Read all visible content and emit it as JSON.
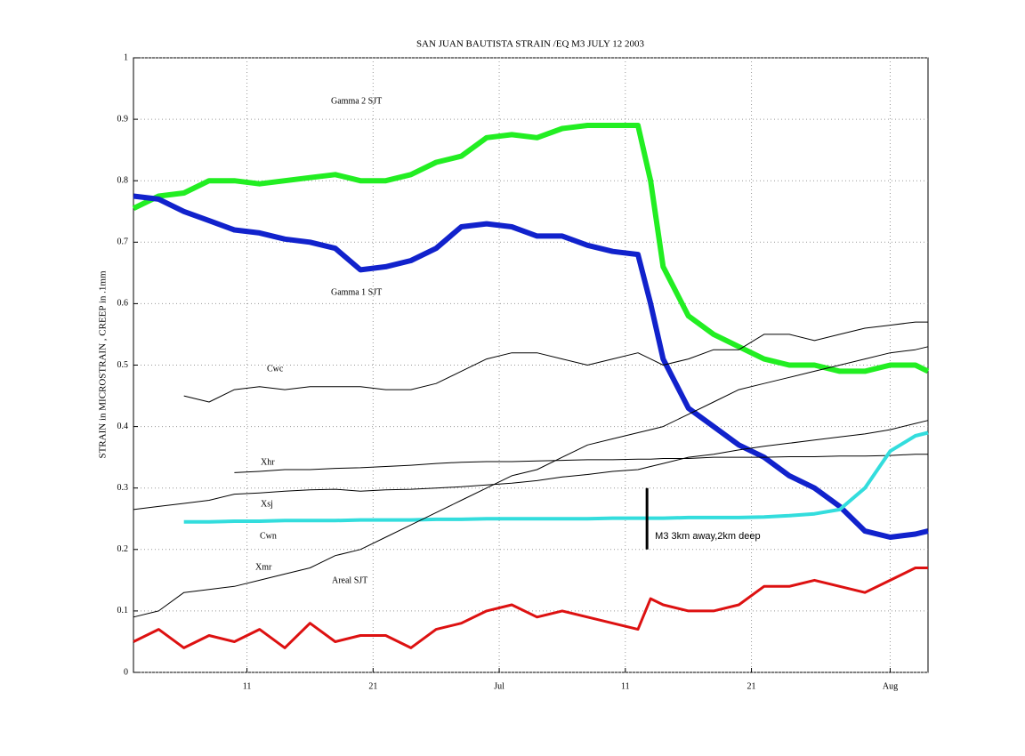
{
  "chart_data": {
    "type": "line",
    "title": "SAN JUAN BAUTISTA STRAIN /EQ M3 JULY 12 2003",
    "y_label": "STRAIN in MICROSTRAIN , CREEP in .1mm",
    "x": [
      "2003-06-02",
      "2003-06-04",
      "2003-06-06",
      "2003-06-08",
      "2003-06-10",
      "2003-06-12",
      "2003-06-14",
      "2003-06-16",
      "2003-06-18",
      "2003-06-20",
      "2003-06-22",
      "2003-06-24",
      "2003-06-26",
      "2003-06-28",
      "2003-06-30",
      "2003-07-02",
      "2003-07-04",
      "2003-07-06",
      "2003-07-08",
      "2003-07-10",
      "2003-07-12",
      "2003-07-13",
      "2003-07-14",
      "2003-07-16",
      "2003-07-18",
      "2003-07-20",
      "2003-07-22",
      "2003-07-24",
      "2003-07-26",
      "2003-07-28",
      "2003-07-30",
      "2003-08-01",
      "2003-08-03",
      "2003-08-04"
    ],
    "xlim": [
      "2003-06-02",
      "2003-08-04"
    ],
    "xticks": [
      {
        "value": "2003-06-11",
        "label": "11"
      },
      {
        "value": "2003-06-21",
        "label": "21"
      },
      {
        "value": "2003-07-01",
        "label": "Jul"
      },
      {
        "value": "2003-07-11",
        "label": "11"
      },
      {
        "value": "2003-07-21",
        "label": "21"
      },
      {
        "value": "2003-08-01",
        "label": "Aug"
      }
    ],
    "ylim": [
      0,
      1
    ],
    "yticks": [
      0,
      0.1,
      0.2,
      0.3,
      0.4,
      0.5,
      0.6,
      0.7,
      0.8,
      0.9,
      1
    ],
    "grid": true,
    "series": [
      {
        "name": "Gamma 2 SJT",
        "color": "#22ee22",
        "width": 6,
        "values": [
          0.755,
          0.775,
          0.78,
          0.8,
          0.8,
          0.795,
          0.8,
          0.805,
          0.81,
          0.8,
          0.8,
          0.81,
          0.83,
          0.84,
          0.87,
          0.875,
          0.87,
          0.885,
          0.89,
          0.89,
          0.89,
          0.8,
          0.66,
          0.58,
          0.55,
          0.53,
          0.51,
          0.5,
          0.5,
          0.49,
          0.49,
          0.5,
          0.5,
          0.49
        ]
      },
      {
        "name": "Gamma 1 SJT",
        "color": "#1122cc",
        "width": 6,
        "values": [
          0.775,
          0.77,
          0.75,
          0.735,
          0.72,
          0.715,
          0.705,
          0.7,
          0.69,
          0.655,
          0.66,
          0.67,
          0.69,
          0.725,
          0.73,
          0.725,
          0.71,
          0.71,
          0.695,
          0.685,
          0.68,
          0.6,
          0.51,
          0.43,
          0.4,
          0.37,
          0.35,
          0.32,
          0.3,
          0.27,
          0.23,
          0.22,
          0.225,
          0.23
        ]
      },
      {
        "name": "Cwc",
        "color": "#000000",
        "width": 1,
        "values": [
          null,
          null,
          0.45,
          0.44,
          0.46,
          0.465,
          0.46,
          0.465,
          0.465,
          0.465,
          0.46,
          0.46,
          0.47,
          0.49,
          0.51,
          0.52,
          0.52,
          0.51,
          0.5,
          0.51,
          0.52,
          0.51,
          0.5,
          0.51,
          0.525,
          0.525,
          0.55,
          0.55,
          0.54,
          0.55,
          0.56,
          0.565,
          0.57,
          0.57
        ]
      },
      {
        "name": "Xhr",
        "color": "#000000",
        "width": 1,
        "values": [
          null,
          null,
          null,
          null,
          0.325,
          0.327,
          0.33,
          0.33,
          0.332,
          0.333,
          0.335,
          0.337,
          0.34,
          0.342,
          0.343,
          0.343,
          0.344,
          0.345,
          0.346,
          0.346,
          0.347,
          0.347,
          0.348,
          0.348,
          0.35,
          0.35,
          0.35,
          0.351,
          0.351,
          0.352,
          0.352,
          0.353,
          0.355,
          0.355
        ]
      },
      {
        "name": "Xsj",
        "color": "#000000",
        "width": 1,
        "values": [
          0.265,
          0.27,
          0.275,
          0.28,
          0.29,
          0.292,
          0.295,
          0.297,
          0.298,
          0.295,
          0.297,
          0.298,
          0.3,
          0.302,
          0.305,
          0.308,
          0.312,
          0.318,
          0.322,
          0.327,
          0.33,
          0.335,
          0.34,
          0.35,
          0.355,
          0.362,
          0.368,
          0.373,
          0.378,
          0.383,
          0.388,
          0.395,
          0.405,
          0.41
        ]
      },
      {
        "name": "Cwn",
        "color": "#33dddd",
        "width": 4,
        "values": [
          null,
          null,
          0.245,
          0.245,
          0.246,
          0.246,
          0.247,
          0.247,
          0.247,
          0.248,
          0.248,
          0.248,
          0.249,
          0.249,
          0.25,
          0.25,
          0.25,
          0.25,
          0.25,
          0.251,
          0.251,
          0.251,
          0.251,
          0.252,
          0.252,
          0.252,
          0.253,
          0.255,
          0.258,
          0.265,
          0.3,
          0.36,
          0.385,
          0.39
        ]
      },
      {
        "name": "Xmr",
        "color": "#000000",
        "width": 1,
        "values": [
          0.09,
          0.1,
          0.13,
          0.135,
          0.14,
          0.15,
          0.16,
          0.17,
          0.19,
          0.2,
          0.22,
          0.24,
          0.26,
          0.28,
          0.3,
          0.32,
          0.33,
          0.35,
          0.37,
          0.38,
          0.39,
          0.395,
          0.4,
          0.42,
          0.44,
          0.46,
          0.47,
          0.48,
          0.49,
          0.5,
          0.51,
          0.52,
          0.525,
          0.53
        ]
      },
      {
        "name": "Areal SJT",
        "color": "#dd1111",
        "width": 3,
        "values": [
          0.05,
          0.07,
          0.04,
          0.06,
          0.05,
          0.07,
          0.04,
          0.08,
          0.05,
          0.06,
          0.06,
          0.04,
          0.07,
          0.08,
          0.1,
          0.11,
          0.09,
          0.1,
          0.09,
          0.08,
          0.07,
          0.12,
          0.11,
          0.1,
          0.1,
          0.11,
          0.14,
          0.14,
          0.15,
          0.14,
          0.13,
          0.15,
          0.17,
          0.17
        ]
      }
    ],
    "annotation": {
      "text": "M3 3km away,2km deep",
      "x": "2003-07-13",
      "span": [
        0.2,
        0.3
      ]
    }
  }
}
